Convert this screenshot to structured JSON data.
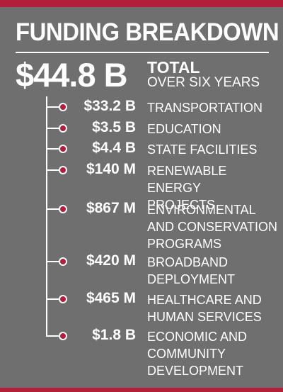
{
  "header": {
    "title": "FUNDING BREAKDOWN"
  },
  "total": {
    "amount": "$44.8 B",
    "label": "TOTAL",
    "sublabel": "OVER SIX YEARS"
  },
  "items": [
    {
      "amount": "$33.2 B",
      "label": "TRANSPORTATION"
    },
    {
      "amount": "$3.5 B",
      "label": "EDUCATION"
    },
    {
      "amount": "$4.4 B",
      "label": "STATE FACILITIES"
    },
    {
      "amount": "$140 M",
      "label": "RENEWABLE ENERGY\nPROJECTS"
    },
    {
      "amount": "$867 M",
      "label": "ENVIRONMENTAL\nAND CONSERVATION\nPROGRAMS"
    },
    {
      "amount": "$420 M",
      "label": "BROADBAND\nDEPLOYMENT"
    },
    {
      "amount": "$465 M",
      "label": "HEALTHCARE AND\nHUMAN SERVICES"
    },
    {
      "amount": "$1.8 B",
      "label": "ECONOMIC AND\nCOMMUNITY\nDEVELOPMENT"
    }
  ],
  "colors": {
    "background": "#6f6f6f",
    "accent": "#b21f3a",
    "text": "#ffffff"
  }
}
